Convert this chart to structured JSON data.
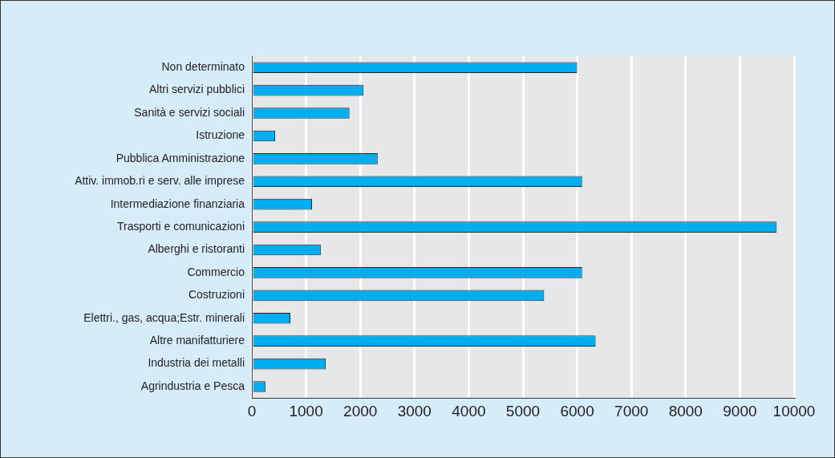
{
  "chart_data": {
    "type": "bar",
    "orientation": "horizontal",
    "categories": [
      "Non determinato",
      "Altri servizi pubblici",
      "Sanità e servizi sociali",
      "Istruzione",
      "Pubblica Amministrazione",
      "Attiv. immob.ri e serv. alle imprese",
      "Intermediazione finanziaria",
      "Trasporti e comunicazioni",
      "Alberghi e ristoranti",
      "Commercio",
      "Costruzioni",
      "Elettri., gas, acqua;Estr. minerali",
      "Altre manifatturiere",
      "Industria dei metalli",
      "Agrindustria e Pesca"
    ],
    "values": [
      6000,
      2060,
      1800,
      430,
      2320,
      6090,
      1110,
      9680,
      1270,
      6090,
      5390,
      710,
      6340,
      1360,
      250
    ],
    "color": "#00aeef",
    "xlim": [
      0,
      10000
    ],
    "xticks": [
      0,
      1000,
      2000,
      3000,
      4000,
      5000,
      6000,
      7000,
      8000,
      9000,
      10000
    ],
    "grid": "x",
    "legend": false
  }
}
